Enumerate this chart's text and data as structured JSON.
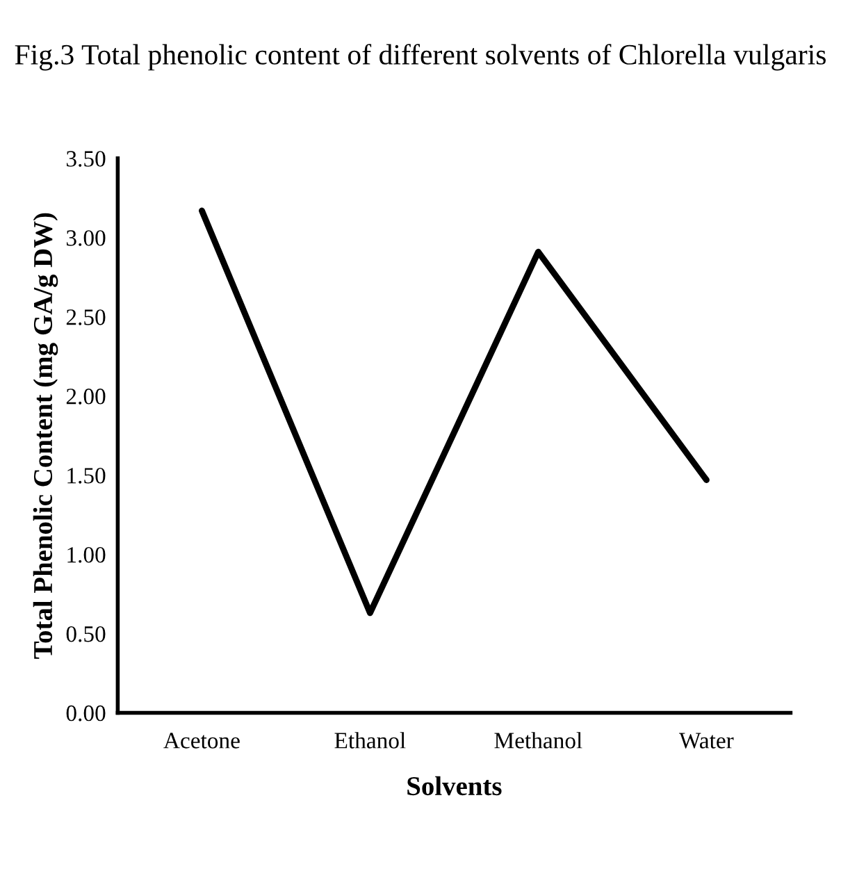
{
  "chart_data": {
    "type": "line",
    "title": "Fig.3 Total phenolic content of different solvents of Chlorella vulgaris",
    "xlabel": "Solvents",
    "ylabel": "Total Phenolic Content (mg GA/g DW)",
    "categories": [
      "Acetone",
      "Ethanol",
      "Methanol",
      "Water"
    ],
    "series": [
      {
        "color": "#000000",
        "values": [
          3.17,
          0.63,
          2.91,
          1.47
        ]
      }
    ],
    "ylim": [
      0,
      3.5
    ],
    "yticks": [
      {
        "value": 0,
        "label": "0.00"
      },
      {
        "value": 0.5,
        "label": "0.50"
      },
      {
        "value": 1,
        "label": "1.00"
      },
      {
        "value": 1.5,
        "label": "1.50"
      },
      {
        "value": 2,
        "label": "2.00"
      },
      {
        "value": 2.5,
        "label": "2.50"
      },
      {
        "value": 3,
        "label": "3.00"
      },
      {
        "value": 3.5,
        "label": "3.50"
      }
    ],
    "grid": false,
    "marker": "none",
    "line_style": "solid"
  }
}
